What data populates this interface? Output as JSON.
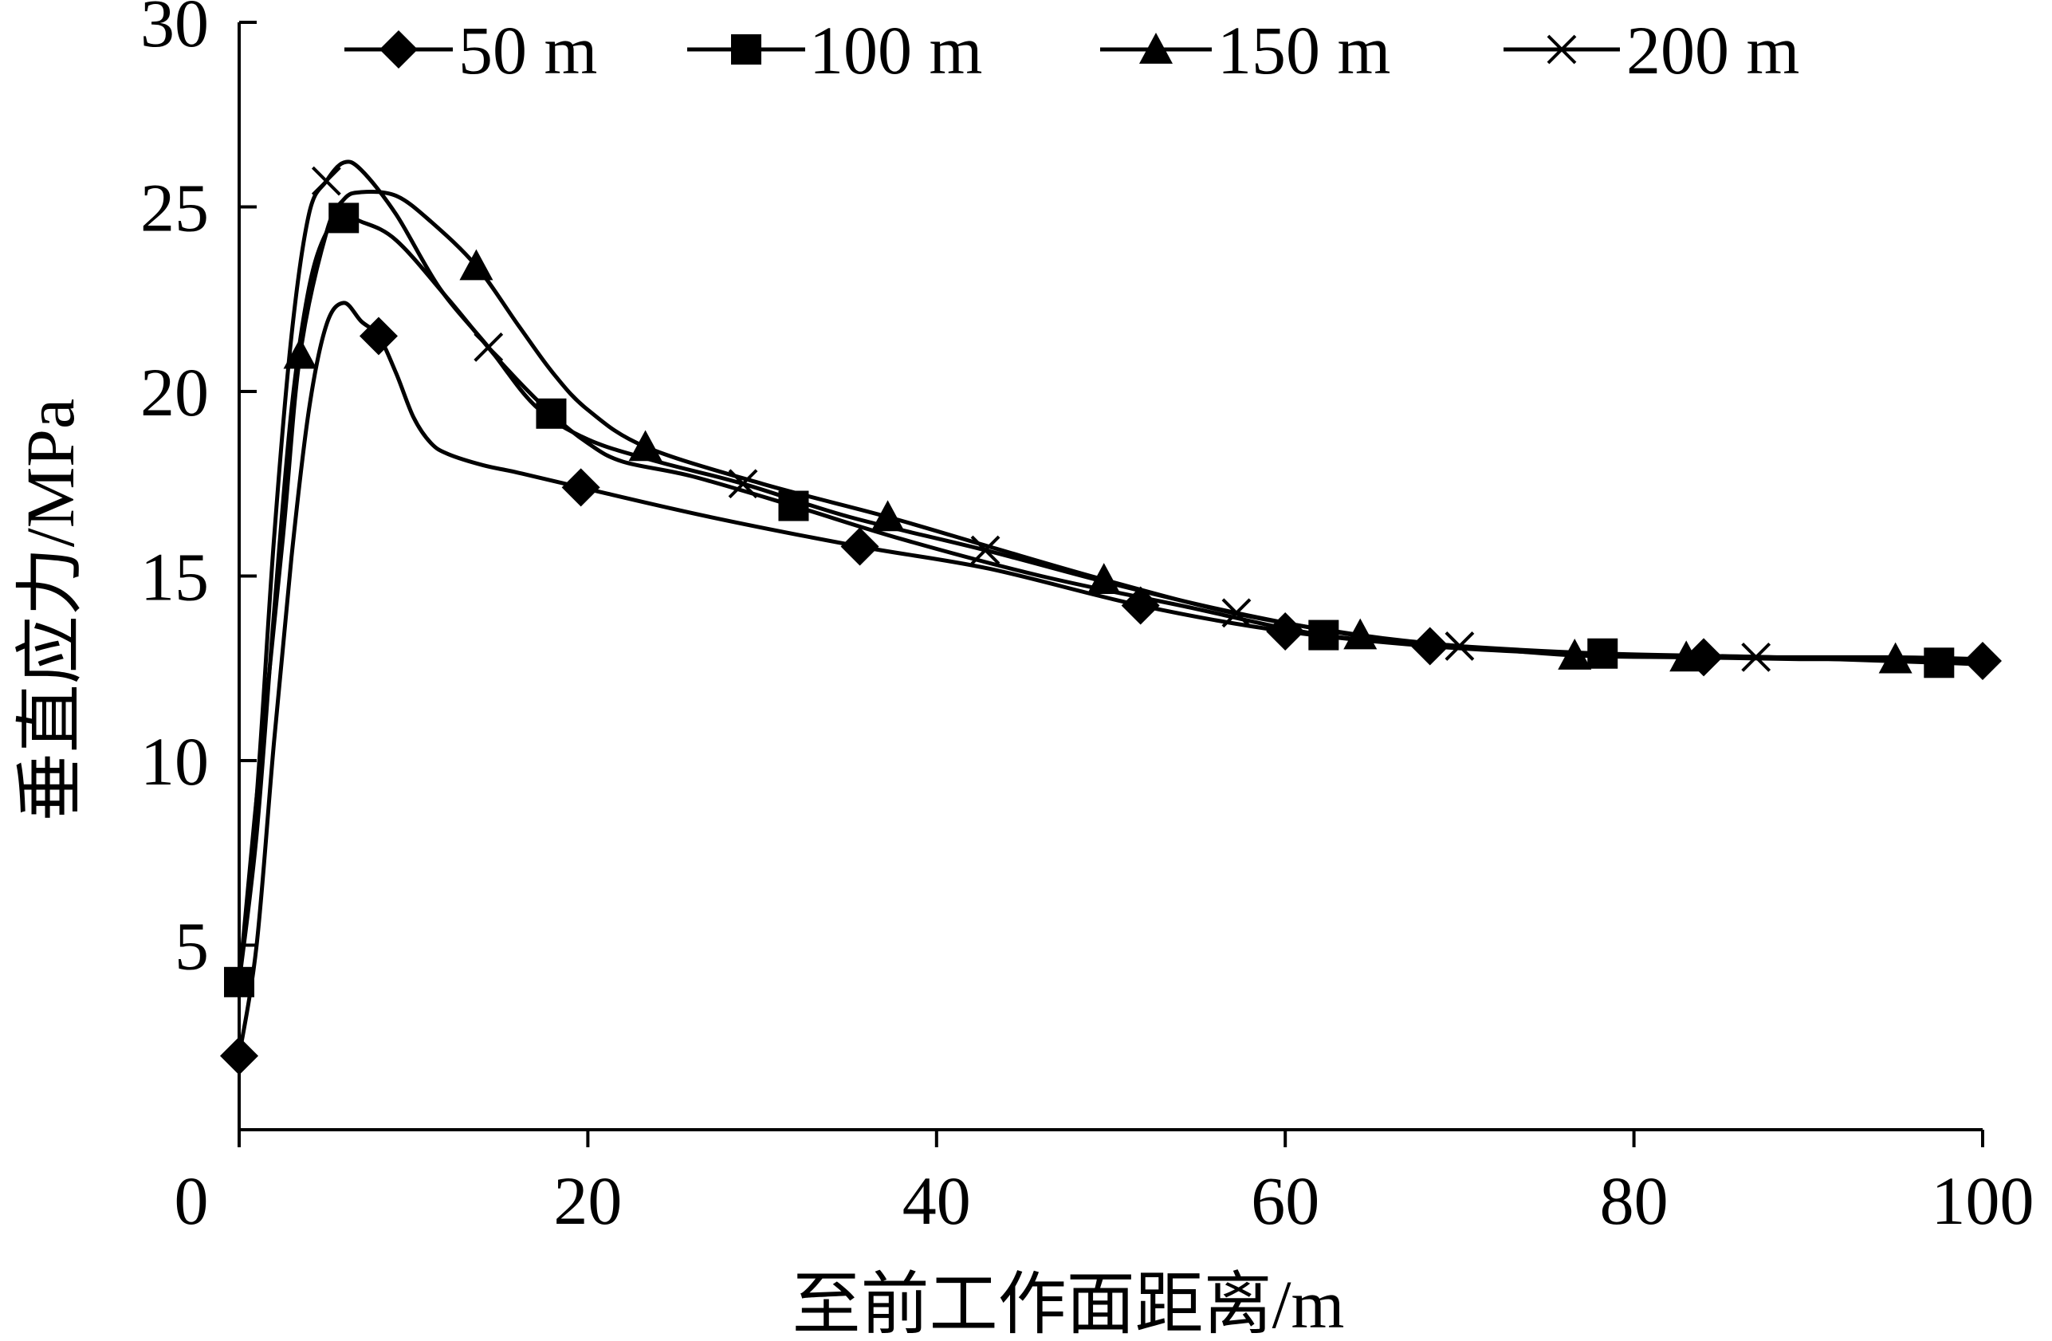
{
  "chart_data": {
    "type": "line",
    "title": "",
    "xlabel": "至前工作面距离/m",
    "ylabel": "垂直应力/MPa",
    "xlim": [
      0,
      100
    ],
    "ylim": [
      0,
      30
    ],
    "x_ticks": [
      0,
      20,
      40,
      60,
      80,
      100
    ],
    "y_ticks": [
      5,
      10,
      15,
      20,
      25,
      30
    ],
    "grid": false,
    "legend_position": "top",
    "series": [
      {
        "name": "50 m",
        "marker": "diamond",
        "color": "#000000",
        "points": [
          [
            0,
            2
          ],
          [
            1,
            5
          ],
          [
            2,
            10.5
          ],
          [
            3,
            15.5
          ],
          [
            4,
            19.5
          ],
          [
            5,
            21.8
          ],
          [
            6,
            22.4
          ],
          [
            7,
            21.9
          ],
          [
            8,
            21.5
          ],
          [
            9,
            20.5
          ],
          [
            10,
            19.3
          ],
          [
            11,
            18.6
          ],
          [
            12,
            18.3
          ],
          [
            14,
            18
          ],
          [
            16,
            17.8
          ],
          [
            19.6,
            17.4
          ],
          [
            27,
            16.6
          ],
          [
            35.6,
            15.8
          ],
          [
            43,
            15.2
          ],
          [
            51.7,
            14.2
          ],
          [
            60,
            13.5
          ],
          [
            68.3,
            13.1
          ],
          [
            76,
            12.9
          ],
          [
            84,
            12.8
          ],
          [
            92,
            12.75
          ],
          [
            100,
            12.7
          ]
        ]
      },
      {
        "name": "100 m",
        "marker": "square",
        "color": "#000000",
        "points": [
          [
            0,
            4
          ],
          [
            1,
            8
          ],
          [
            2,
            14
          ],
          [
            3,
            19.5
          ],
          [
            4,
            22.8
          ],
          [
            5,
            24.3
          ],
          [
            6,
            24.7
          ],
          [
            7,
            24.6
          ],
          [
            9,
            24.1
          ],
          [
            12,
            22.5
          ],
          [
            15,
            20.8
          ],
          [
            17.9,
            19.4
          ],
          [
            20,
            18.6
          ],
          [
            22,
            18.1
          ],
          [
            26,
            17.7
          ],
          [
            31.8,
            16.9
          ],
          [
            38,
            16
          ],
          [
            46,
            15
          ],
          [
            54,
            14.2
          ],
          [
            62.2,
            13.4
          ],
          [
            70,
            13.1
          ],
          [
            78.2,
            12.9
          ],
          [
            88,
            12.8
          ],
          [
            97.5,
            12.65
          ],
          [
            100,
            12.6
          ]
        ]
      },
      {
        "name": "150 m",
        "marker": "triangle",
        "color": "#000000",
        "points": [
          [
            0,
            4
          ],
          [
            1,
            9
          ],
          [
            2.5,
            16
          ],
          [
            3.5,
            21
          ],
          [
            5,
            24.3
          ],
          [
            6,
            25.2
          ],
          [
            7,
            25.4
          ],
          [
            9,
            25.3
          ],
          [
            11,
            24.6
          ],
          [
            13.6,
            23.4
          ],
          [
            16,
            21.8
          ],
          [
            18,
            20.5
          ],
          [
            20,
            19.5
          ],
          [
            23.3,
            18.5
          ],
          [
            30,
            17.5
          ],
          [
            37.2,
            16.6
          ],
          [
            43,
            15.8
          ],
          [
            49.6,
            14.9
          ],
          [
            57,
            14
          ],
          [
            64.3,
            13.4
          ],
          [
            70,
            13.1
          ],
          [
            76.6,
            12.85
          ],
          [
            83,
            12.8
          ],
          [
            89.5,
            12.75
          ],
          [
            95,
            12.75
          ],
          [
            100,
            12.7
          ]
        ]
      },
      {
        "name": "200 m",
        "marker": "cross",
        "color": "#000000",
        "points": [
          [
            0,
            4
          ],
          [
            1,
            9
          ],
          [
            2,
            16
          ],
          [
            3,
            21.5
          ],
          [
            4,
            24.8
          ],
          [
            5,
            25.7
          ],
          [
            6,
            26.2
          ],
          [
            7,
            26
          ],
          [
            9,
            24.8
          ],
          [
            11.5,
            22.8
          ],
          [
            14.3,
            21.2
          ],
          [
            17,
            19.6
          ],
          [
            20,
            18.7
          ],
          [
            24,
            18.1
          ],
          [
            28.9,
            17.5
          ],
          [
            35,
            16.6
          ],
          [
            42.8,
            15.7
          ],
          [
            50,
            14.8
          ],
          [
            57.2,
            14
          ],
          [
            64,
            13.4
          ],
          [
            70,
            13.1
          ],
          [
            74.4,
            12.95
          ],
          [
            80,
            12.85
          ],
          [
            87,
            12.8
          ],
          [
            94.7,
            12.8
          ],
          [
            100,
            12.75
          ]
        ]
      }
    ]
  }
}
